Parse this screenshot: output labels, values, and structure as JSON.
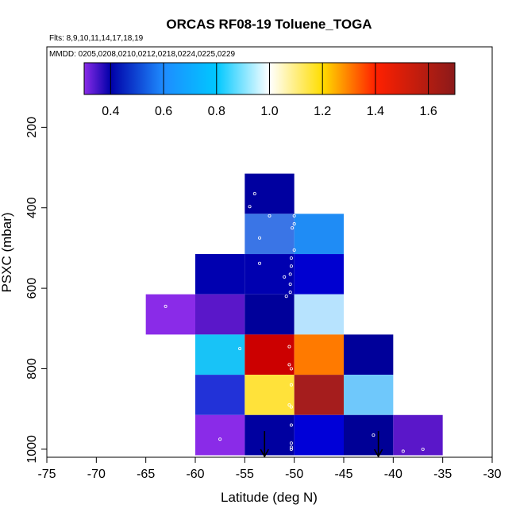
{
  "chart_data": {
    "type": "heatmap",
    "title": "ORCAS RF08-19 Toluene_TOGA",
    "flights_label": "Flts: 8,9,10,11,14,17,18,19",
    "dates_label": "MMDD: 0205,0208,0210,0212,0218,0224,0225,0229",
    "xlabel": "Latitude (deg N)",
    "ylabel": "PSXC (mbar)",
    "xlim": [
      -75,
      -30
    ],
    "ylim": [
      1020,
      0
    ],
    "x_ticks": [
      -75,
      -70,
      -65,
      -60,
      -55,
      -50,
      -45,
      -40,
      -35,
      -30
    ],
    "x_tick_labels": [
      "-75",
      "-70",
      "-65",
      "-60",
      "-55",
      "-50",
      "-45",
      "-40",
      "-35",
      "-30"
    ],
    "y_ticks": [
      200,
      400,
      600,
      800,
      1000
    ],
    "y_tick_labels": [
      "200",
      "400",
      "600",
      "800",
      "1000"
    ],
    "colorbar": {
      "range": [
        0.3,
        1.7
      ],
      "ticks": [
        0.4,
        0.6,
        0.8,
        1.0,
        1.2,
        1.4,
        1.6
      ],
      "tick_labels": [
        "0.4",
        "0.6",
        "0.8",
        "1.0",
        "1.2",
        "1.4",
        "1.6"
      ],
      "segments": [
        {
          "from": 0.3,
          "to": 0.4,
          "from_color": "#8a2be8",
          "to_color": "#0000a8"
        },
        {
          "from": 0.4,
          "to": 0.6,
          "from_color": "#0000a8",
          "to_color": "#1e8cff"
        },
        {
          "from": 0.6,
          "to": 0.8,
          "from_color": "#1e8cff",
          "to_color": "#00c8ff"
        },
        {
          "from": 0.8,
          "to": 1.0,
          "from_color": "#00c8ff",
          "to_color": "#ffffff"
        },
        {
          "from": 1.0,
          "to": 1.2,
          "from_color": "#ffffff",
          "to_color": "#ffdd00"
        },
        {
          "from": 1.2,
          "to": 1.4,
          "from_color": "#ffdd00",
          "to_color": "#ff2000"
        },
        {
          "from": 1.4,
          "to": 1.7,
          "from_color": "#ff2000",
          "to_color": "#8b1a1a"
        }
      ]
    },
    "cells": [
      {
        "lat": [
          -55,
          -50
        ],
        "p": [
          315,
          415
        ],
        "color": "#0000a0"
      },
      {
        "lat": [
          -55,
          -50
        ],
        "p": [
          415,
          515
        ],
        "color": "#3a75e6"
      },
      {
        "lat": [
          -50,
          -45
        ],
        "p": [
          415,
          515
        ],
        "color": "#1f8cf5"
      },
      {
        "lat": [
          -60,
          -55
        ],
        "p": [
          515,
          615
        ],
        "color": "#0000b0"
      },
      {
        "lat": [
          -55,
          -50
        ],
        "p": [
          515,
          615
        ],
        "color": "#0000b0"
      },
      {
        "lat": [
          -50,
          -45
        ],
        "p": [
          515,
          615
        ],
        "color": "#0000d0"
      },
      {
        "lat": [
          -65,
          -60
        ],
        "p": [
          615,
          715
        ],
        "color": "#8a2be8"
      },
      {
        "lat": [
          -60,
          -55
        ],
        "p": [
          615,
          715
        ],
        "color": "#5a17c9"
      },
      {
        "lat": [
          -55,
          -50
        ],
        "p": [
          615,
          715
        ],
        "color": "#00009a"
      },
      {
        "lat": [
          -50,
          -45
        ],
        "p": [
          615,
          715
        ],
        "color": "#b7e3fe"
      },
      {
        "lat": [
          -60,
          -55
        ],
        "p": [
          715,
          815
        ],
        "color": "#18c3f7"
      },
      {
        "lat": [
          -55,
          -50
        ],
        "p": [
          715,
          815
        ],
        "color": "#cc0000"
      },
      {
        "lat": [
          -50,
          -45
        ],
        "p": [
          715,
          815
        ],
        "color": "#ff7a00"
      },
      {
        "lat": [
          -45,
          -40
        ],
        "p": [
          715,
          815
        ],
        "color": "#00009a"
      },
      {
        "lat": [
          -60,
          -55
        ],
        "p": [
          815,
          915
        ],
        "color": "#2232d8"
      },
      {
        "lat": [
          -55,
          -50
        ],
        "p": [
          815,
          915
        ],
        "color": "#ffe23a"
      },
      {
        "lat": [
          -50,
          -45
        ],
        "p": [
          815,
          915
        ],
        "color": "#a51d1d"
      },
      {
        "lat": [
          -45,
          -40
        ],
        "p": [
          815,
          915
        ],
        "color": "#6fc8fb"
      },
      {
        "lat": [
          -60,
          -55
        ],
        "p": [
          915,
          1015
        ],
        "color": "#8a2be8"
      },
      {
        "lat": [
          -55,
          -50
        ],
        "p": [
          915,
          1015
        ],
        "color": "#0000a0"
      },
      {
        "lat": [
          -50,
          -45
        ],
        "p": [
          915,
          1015
        ],
        "color": "#0000d8"
      },
      {
        "lat": [
          -45,
          -40
        ],
        "p": [
          915,
          1015
        ],
        "color": "#000096"
      },
      {
        "lat": [
          -40,
          -35
        ],
        "p": [
          915,
          1015
        ],
        "color": "#5a17c9"
      }
    ],
    "sample_points": [
      {
        "lat": -54.0,
        "p": 365
      },
      {
        "lat": -54.5,
        "p": 397
      },
      {
        "lat": -52.5,
        "p": 420
      },
      {
        "lat": -50.0,
        "p": 420
      },
      {
        "lat": -50.0,
        "p": 440
      },
      {
        "lat": -50.2,
        "p": 450
      },
      {
        "lat": -53.5,
        "p": 475
      },
      {
        "lat": -50.0,
        "p": 505
      },
      {
        "lat": -50.3,
        "p": 525
      },
      {
        "lat": -53.5,
        "p": 538
      },
      {
        "lat": -50.3,
        "p": 545
      },
      {
        "lat": -50.4,
        "p": 565
      },
      {
        "lat": -51.0,
        "p": 572
      },
      {
        "lat": -50.4,
        "p": 590
      },
      {
        "lat": -50.4,
        "p": 610
      },
      {
        "lat": -50.8,
        "p": 620
      },
      {
        "lat": -63.0,
        "p": 645
      },
      {
        "lat": -55.5,
        "p": 750
      },
      {
        "lat": -50.5,
        "p": 745
      },
      {
        "lat": -50.5,
        "p": 790
      },
      {
        "lat": -50.3,
        "p": 800
      },
      {
        "lat": -50.3,
        "p": 840
      },
      {
        "lat": -50.5,
        "p": 890
      },
      {
        "lat": -50.3,
        "p": 895
      },
      {
        "lat": -50.3,
        "p": 940
      },
      {
        "lat": -50.3,
        "p": 985
      },
      {
        "lat": -50.3,
        "p": 995
      },
      {
        "lat": -50.3,
        "p": 1000
      },
      {
        "lat": -57.5,
        "p": 975
      },
      {
        "lat": -42.0,
        "p": 965
      },
      {
        "lat": -39.0,
        "p": 1005
      },
      {
        "lat": -37.0,
        "p": 1000
      }
    ],
    "arrows": [
      {
        "lat": -53.0,
        "p_top": 955,
        "p_bottom": 1020
      },
      {
        "lat": -41.5,
        "p_top": 955,
        "p_bottom": 1020
      }
    ]
  }
}
